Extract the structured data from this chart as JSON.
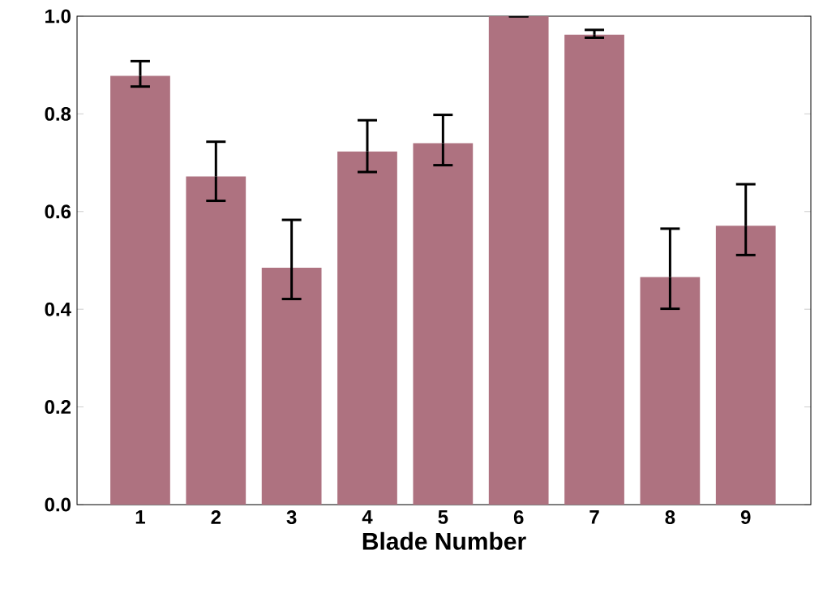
{
  "chart_data": {
    "type": "bar",
    "xlabel": "Blade Number",
    "categories": [
      "1",
      "2",
      "3",
      "4",
      "5",
      "6",
      "7",
      "8",
      "9"
    ],
    "values": [
      0.878,
      0.672,
      0.485,
      0.723,
      0.74,
      1.0,
      0.962,
      0.466,
      0.571
    ],
    "errors": [
      [
        0.856,
        0.908
      ],
      [
        0.622,
        0.743
      ],
      [
        0.421,
        0.583
      ],
      [
        0.681,
        0.787
      ],
      [
        0.695,
        0.798
      ],
      null,
      [
        0.956,
        0.972
      ],
      [
        0.401,
        0.565
      ],
      [
        0.511,
        0.656
      ]
    ],
    "color": "#ae7280",
    "ylim": [
      0,
      1.0
    ],
    "yticks": [
      {
        "value": 0,
        "label": "0.0"
      },
      {
        "value": 0.2,
        "label": "0.2"
      },
      {
        "value": 0.4,
        "label": "0.4"
      },
      {
        "value": 0.6,
        "label": "0.6"
      },
      {
        "value": 0.8,
        "label": "0.8"
      },
      {
        "value": 1.0,
        "label": "1.0"
      }
    ]
  }
}
